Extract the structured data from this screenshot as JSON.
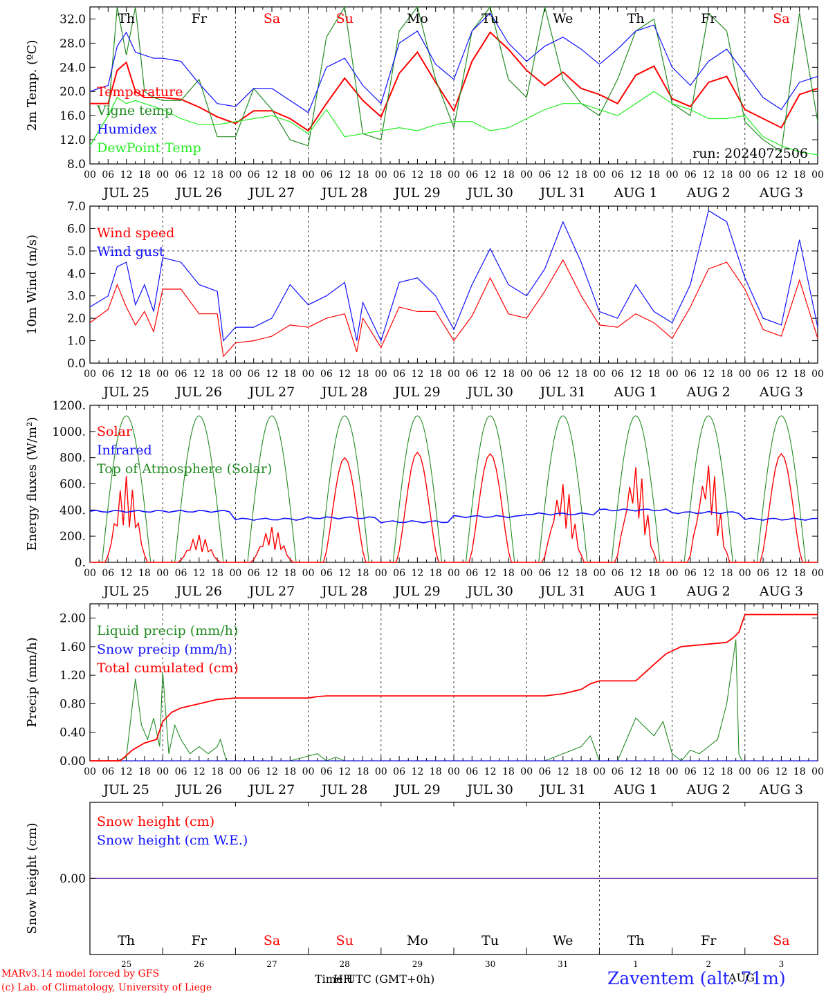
{
  "run_label": "run: 2024072506",
  "colors": {
    "red": "#ff0000",
    "green": "#228b22",
    "blue": "#1010ff",
    "lightgreen": "#22ee22",
    "purple": "#8844aa"
  },
  "days": [
    "JUL 25",
    "JUL 26",
    "JUL 27",
    "JUL 28",
    "JUL 29",
    "JUL 30",
    "JUL 31",
    "AUG  1",
    "AUG  2",
    "AUG  3"
  ],
  "weekdays": [
    "Th",
    "Fr",
    "Sa",
    "Su",
    "Mo",
    "Tu",
    "We",
    "Th",
    "Fr",
    "Sa"
  ],
  "weekday_colors": [
    "#000000",
    "#000000",
    "#ff0000",
    "#ff0000",
    "#000000",
    "#000000",
    "#000000",
    "#000000",
    "#000000",
    "#ff0000"
  ],
  "hour_ticks": [
    "00",
    "06",
    "12",
    "18"
  ],
  "snow_day_numbers": [
    "25",
    "26",
    "27",
    "28",
    "29",
    "30",
    "31",
    "1",
    "2",
    "3"
  ],
  "footer": {
    "model": "MARv3.14 model forced by GFS",
    "credit": "(c) Lab. of Climatology, University of Liege",
    "time_label": "Time UTC (GMT+0h)",
    "time_overlap": "HH",
    "station": "Zaventem (alt. 71m)",
    "station_overlap": "AUG"
  },
  "chart_data": [
    {
      "type": "line",
      "title": "",
      "ylabel": "2m Temp. (ºC)",
      "ylim": [
        8,
        34
      ],
      "yticks": [
        "8.0",
        "12.0",
        "16.0",
        "20.0",
        "24.0",
        "28.0",
        "32.0"
      ],
      "x_unit": "hours since JUL 25 00 UTC",
      "series": [
        {
          "name": "Temperature",
          "color": "#ff0000",
          "x": [
            0,
            6,
            9,
            12,
            15,
            18,
            21,
            24,
            30,
            36,
            42,
            48,
            54,
            60,
            66,
            72,
            78,
            84,
            90,
            96,
            102,
            108,
            114,
            120,
            126,
            132,
            138,
            144,
            150,
            156,
            162,
            168,
            174,
            180,
            186,
            192,
            198,
            204,
            210,
            216,
            222,
            228,
            234,
            240
          ],
          "y": [
            18,
            18,
            23.5,
            24.8,
            20,
            19,
            19,
            19,
            18.7,
            17.4,
            15.8,
            14.7,
            16.8,
            16.8,
            15.5,
            13.5,
            18,
            22.2,
            18.5,
            15.8,
            23,
            26.5,
            21.5,
            16.8,
            25,
            29.8,
            27,
            23.5,
            21,
            23.2,
            20.5,
            19.5,
            18,
            22.7,
            24.2,
            18.8,
            17.5,
            21.5,
            22.5,
            17,
            15.5,
            14,
            19.5,
            20.5
          ]
        },
        {
          "name": "Vigne temp",
          "color": "#228b22",
          "x": [
            0,
            6,
            9,
            12,
            15,
            18,
            21,
            24,
            30,
            36,
            42,
            48,
            54,
            60,
            66,
            72,
            78,
            84,
            90,
            96,
            102,
            108,
            114,
            120,
            126,
            132,
            138,
            144,
            150,
            156,
            162,
            168,
            174,
            180,
            186,
            192,
            198,
            204,
            210,
            216,
            222,
            228,
            234,
            240
          ],
          "y": [
            11,
            16,
            34,
            26,
            34,
            20,
            19,
            18.5,
            18.5,
            22,
            12.5,
            12.5,
            20.5,
            17,
            12,
            11,
            29,
            34,
            13,
            12,
            30,
            34,
            22,
            14,
            30,
            34,
            22,
            19,
            34,
            22,
            18,
            16,
            22,
            30,
            32,
            18,
            16,
            33,
            30,
            15,
            12,
            10,
            33,
            15
          ]
        },
        {
          "name": "Humidex",
          "color": "#1010ff",
          "x": [
            0,
            6,
            9,
            12,
            15,
            18,
            21,
            24,
            30,
            36,
            42,
            48,
            54,
            60,
            66,
            72,
            78,
            84,
            90,
            96,
            102,
            108,
            114,
            120,
            126,
            132,
            138,
            144,
            150,
            156,
            162,
            168,
            174,
            180,
            186,
            192,
            198,
            204,
            210,
            216,
            222,
            228,
            234,
            240
          ],
          "y": [
            20,
            21,
            27.5,
            29.8,
            26.5,
            26,
            25.5,
            25.5,
            25,
            21.3,
            18,
            17.5,
            20.5,
            20.5,
            18.5,
            16.5,
            24,
            25.5,
            21,
            18,
            28,
            30,
            24.5,
            22,
            30,
            33,
            28,
            25,
            27.5,
            29,
            27,
            24.5,
            27,
            30,
            31,
            24,
            21,
            25,
            27,
            23,
            19,
            17,
            21.5,
            22.5
          ]
        },
        {
          "name": "DewPoint Temp",
          "color": "#22ee22",
          "x": [
            0,
            6,
            9,
            12,
            15,
            18,
            21,
            24,
            30,
            36,
            42,
            48,
            54,
            60,
            66,
            72,
            78,
            84,
            90,
            96,
            102,
            108,
            114,
            120,
            126,
            132,
            138,
            144,
            150,
            156,
            162,
            168,
            174,
            180,
            186,
            192,
            198,
            204,
            210,
            216,
            222,
            228,
            234,
            240
          ],
          "y": [
            11,
            16,
            19,
            18,
            18.5,
            18,
            17.5,
            17,
            15.5,
            14.5,
            14.5,
            15,
            15.5,
            16,
            15,
            13,
            17,
            12.5,
            13,
            13.5,
            14,
            13.5,
            14.5,
            15,
            15,
            13.5,
            14,
            15.5,
            17,
            18,
            18,
            17,
            16,
            18,
            20,
            18,
            17,
            15.5,
            15.5,
            16,
            12.5,
            11,
            10,
            9.5
          ]
        }
      ]
    },
    {
      "type": "line",
      "title": "",
      "ylabel": "10m Wind (m/s)",
      "ylim": [
        0,
        7
      ],
      "yticks": [
        "0.0",
        "1.0",
        "2.0",
        "3.0",
        "4.0",
        "5.0",
        "6.0",
        "7.0"
      ],
      "reference_line": 5.0,
      "x_unit": "hours since JUL 25 00 UTC",
      "series": [
        {
          "name": "Wind speed",
          "color": "#ff0000",
          "x": [
            0,
            6,
            9,
            12,
            15,
            18,
            21,
            24,
            30,
            36,
            42,
            44,
            48,
            54,
            60,
            66,
            72,
            78,
            84,
            88,
            90,
            96,
            102,
            108,
            114,
            120,
            126,
            132,
            138,
            144,
            150,
            156,
            162,
            168,
            174,
            180,
            186,
            192,
            198,
            204,
            210,
            216,
            222,
            228,
            234,
            240
          ],
          "y": [
            1.8,
            2.4,
            3.5,
            2.5,
            1.7,
            2.3,
            1.4,
            3.3,
            3.3,
            2.2,
            2.2,
            0.3,
            0.9,
            1.0,
            1.2,
            1.7,
            1.6,
            2.0,
            2.2,
            0.5,
            2.0,
            0.7,
            2.5,
            2.3,
            2.3,
            1.0,
            2.1,
            3.8,
            2.2,
            2.0,
            3.2,
            4.6,
            3.0,
            1.7,
            1.6,
            2.2,
            1.8,
            1.1,
            2.5,
            4.2,
            4.5,
            3.3,
            1.5,
            1.2,
            3.7,
            1.1
          ]
        },
        {
          "name": "Wind gust",
          "color": "#1010ff",
          "x": [
            0,
            6,
            9,
            12,
            15,
            18,
            21,
            24,
            30,
            36,
            42,
            44,
            48,
            54,
            60,
            66,
            72,
            78,
            84,
            88,
            90,
            96,
            102,
            108,
            114,
            120,
            126,
            132,
            138,
            144,
            150,
            156,
            162,
            168,
            174,
            180,
            186,
            192,
            198,
            204,
            210,
            216,
            222,
            228,
            234,
            240
          ],
          "y": [
            2.5,
            3.0,
            4.3,
            4.5,
            2.6,
            3.5,
            2.3,
            4.7,
            4.5,
            3.5,
            3.2,
            1.0,
            1.6,
            1.6,
            2.0,
            3.5,
            2.6,
            3.0,
            3.6,
            1.0,
            2.7,
            1.0,
            3.6,
            3.8,
            3.0,
            1.5,
            3.5,
            5.1,
            3.5,
            3.0,
            4.2,
            6.3,
            4.5,
            2.3,
            2.0,
            3.5,
            2.3,
            1.8,
            3.5,
            6.8,
            6.3,
            3.8,
            2.0,
            1.7,
            5.5,
            1.6
          ]
        }
      ]
    },
    {
      "type": "line",
      "title": "",
      "ylabel": "Energy fluxes (W/m²)",
      "ylim": [
        0,
        1200
      ],
      "yticks": [
        "0.",
        "200.",
        "400.",
        "600.",
        "800.",
        "1000.",
        "1200."
      ],
      "x_unit": "hours since JUL 25 00 UTC",
      "series": [
        {
          "name": "Solar",
          "color": "#ff0000",
          "daily_peaks": [
            660,
            210,
            270,
            800,
            840,
            830,
            610,
            750,
            770,
            830
          ]
        },
        {
          "name": "Infrared",
          "color": "#1010ff",
          "daily_mean": [
            390,
            390,
            330,
            340,
            310,
            350,
            370,
            400,
            380,
            330
          ]
        },
        {
          "name": "Top of Atmosphere (Solar)",
          "color": "#228b22",
          "daily_peak": 1120
        }
      ]
    },
    {
      "type": "line",
      "title": "",
      "ylabel": "Precip (mm/h)",
      "ylim": [
        0,
        2.2
      ],
      "yticks": [
        "0.00",
        "0.40",
        "0.80",
        "1.20",
        "1.60",
        "2.00"
      ],
      "x_unit": "hours since JUL 25 00 UTC",
      "series": [
        {
          "name": "Liquid precip (mm/h)",
          "color": "#228b22",
          "x": [
            0,
            9,
            12,
            15,
            17,
            19,
            21,
            23,
            24,
            26,
            28,
            30,
            33,
            36,
            39,
            42,
            43,
            45,
            66,
            75,
            78,
            81,
            84,
            150,
            156,
            162,
            165,
            168,
            174,
            180,
            186,
            189,
            192,
            195,
            198,
            201,
            204,
            207,
            210,
            213,
            214,
            215,
            216,
            240
          ],
          "y": [
            0,
            0,
            0.05,
            1.15,
            0.5,
            0.3,
            0.6,
            0.2,
            1.25,
            0.1,
            0.5,
            0.3,
            0.1,
            0.2,
            0.1,
            0.2,
            0.3,
            0,
            0,
            0.1,
            0,
            0.05,
            0,
            0,
            0.1,
            0.2,
            0.35,
            0,
            0,
            0.6,
            0.35,
            0.55,
            0.1,
            0,
            0.15,
            0.1,
            0.2,
            0.3,
            0.8,
            1.7,
            0.1,
            0,
            0,
            0
          ]
        },
        {
          "name": "Snow precip (mm/h)",
          "color": "#1010ff",
          "x": [
            0,
            240
          ],
          "y": [
            0,
            0
          ]
        },
        {
          "name": "Total cumulated (cm)",
          "color": "#ff0000",
          "x": [
            0,
            10,
            14,
            18,
            22,
            24,
            27,
            30,
            36,
            42,
            48,
            60,
            72,
            75,
            78,
            90,
            120,
            150,
            156,
            162,
            165,
            168,
            174,
            180,
            186,
            190,
            195,
            200,
            205,
            210,
            212,
            214,
            216,
            240
          ],
          "y": [
            0,
            0,
            0.15,
            0.25,
            0.3,
            0.55,
            0.68,
            0.74,
            0.8,
            0.86,
            0.88,
            0.88,
            0.88,
            0.9,
            0.91,
            0.91,
            0.91,
            0.91,
            0.94,
            1.0,
            1.08,
            1.12,
            1.12,
            1.12,
            1.35,
            1.5,
            1.6,
            1.62,
            1.64,
            1.66,
            1.72,
            1.8,
            2.05,
            2.05
          ]
        }
      ]
    },
    {
      "type": "line",
      "title": "",
      "ylabel": "Snow height (cm)",
      "yticks": [
        "0.00"
      ],
      "x_unit": "hours since JUL 25 00 UTC",
      "series": [
        {
          "name": "Snow height (cm)",
          "color": "#ff0000",
          "x": [
            0,
            240
          ],
          "y": [
            0,
            0
          ]
        },
        {
          "name": "Snow height (cm W.E.)",
          "color": "#1010ff",
          "x": [
            0,
            240
          ],
          "y": [
            0,
            0
          ]
        }
      ]
    }
  ]
}
